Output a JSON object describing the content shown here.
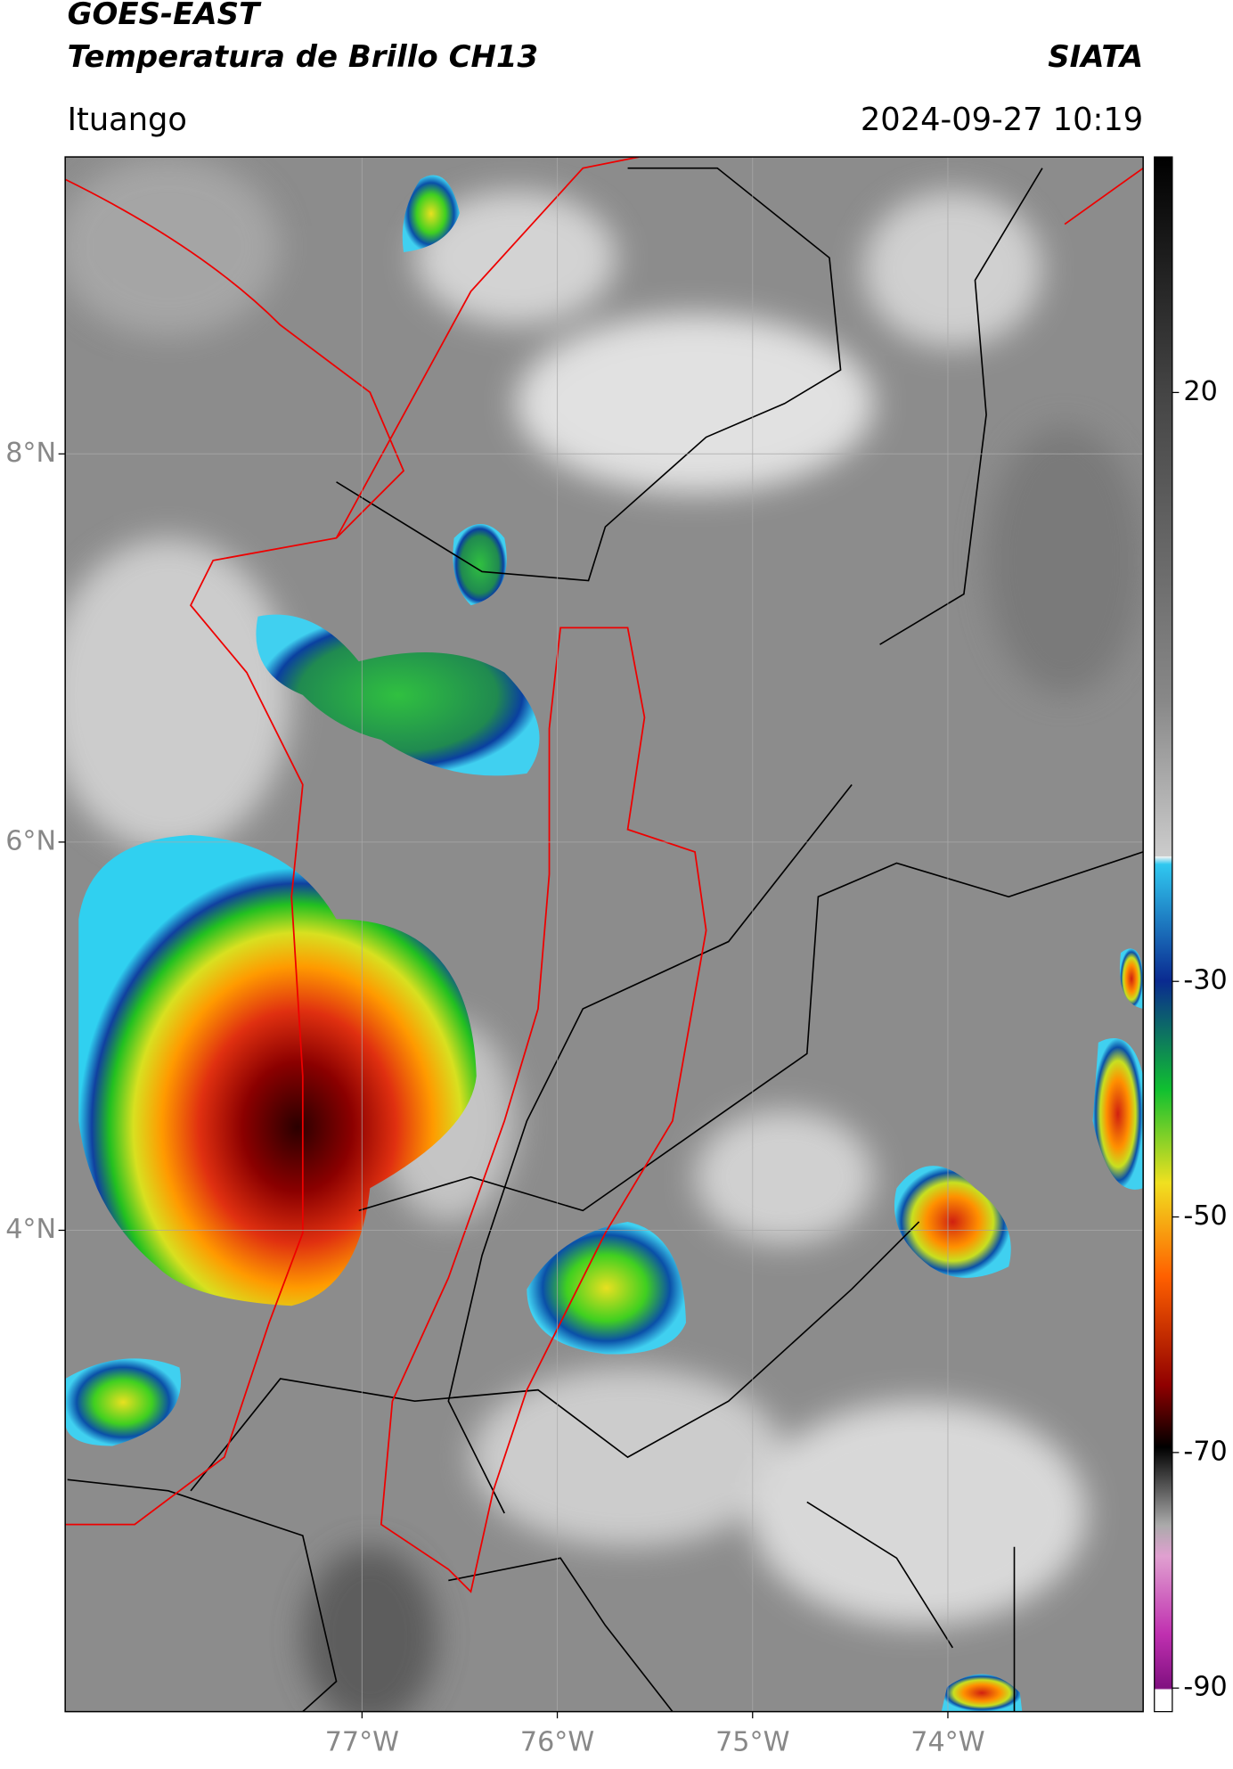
{
  "header": {
    "title": "GOES-EAST",
    "subtitle": "Temperatura de Brillo CH13",
    "source": "SIATA",
    "location": "Ituango",
    "datetime": "2024-09-27 10:19"
  },
  "map": {
    "lonlim": [
      -78.52,
      -73.0
    ],
    "latlim": [
      1.52,
      9.53
    ],
    "lat_ticks": [
      {
        "value": 8,
        "label": "8°N"
      },
      {
        "value": 6,
        "label": "6°N"
      },
      {
        "value": 4,
        "label": "4°N"
      }
    ],
    "lon_ticks": [
      {
        "value": -77,
        "label": "77°W"
      },
      {
        "value": -76,
        "label": "76°W"
      },
      {
        "value": -75,
        "label": "75°W"
      },
      {
        "value": -74,
        "label": "74°W"
      }
    ],
    "colorbar": {
      "lim": [
        -92,
        40
      ],
      "ticks": [
        20,
        -30,
        -50,
        -70,
        -90
      ]
    }
  }
}
